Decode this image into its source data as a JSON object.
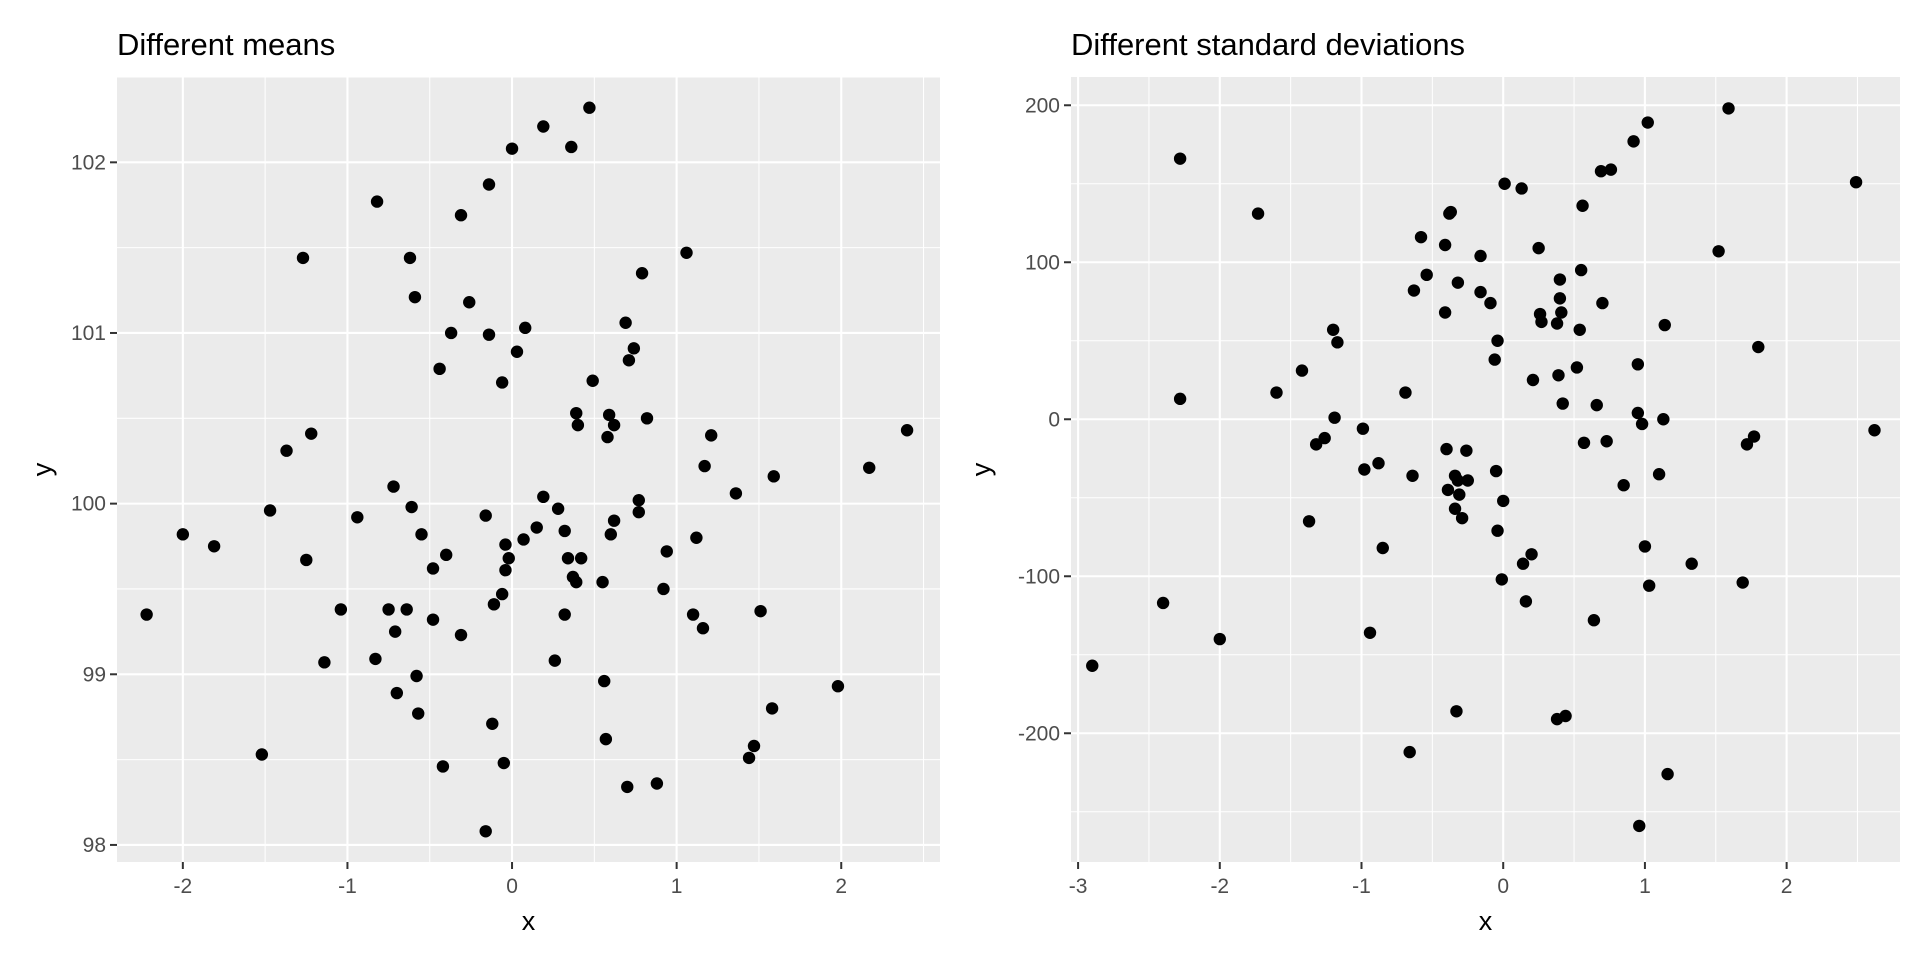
{
  "chart_data": [
    {
      "type": "scatter",
      "title": "Different means",
      "xlabel": "x",
      "ylabel": "y",
      "xlim": [
        -2.4,
        2.6
      ],
      "ylim": [
        97.9,
        102.5
      ],
      "x_ticks": [
        -2,
        -1,
        0,
        1,
        2
      ],
      "y_ticks": [
        98,
        99,
        100,
        101,
        102
      ],
      "x_tick_labels": [
        "-2",
        "-1",
        "0",
        "1",
        "2"
      ],
      "y_tick_labels": [
        "98",
        "99",
        "100",
        "101",
        "102"
      ],
      "grid": true,
      "points": [
        [
          -2.22,
          99.35
        ],
        [
          -2.0,
          99.82
        ],
        [
          -1.81,
          99.75
        ],
        [
          -1.52,
          98.53
        ],
        [
          -1.47,
          99.96
        ],
        [
          -1.37,
          100.31
        ],
        [
          -1.27,
          101.44
        ],
        [
          -1.25,
          99.67
        ],
        [
          -1.22,
          100.41
        ],
        [
          -1.14,
          99.07
        ],
        [
          -1.04,
          99.38
        ],
        [
          -0.94,
          99.92
        ],
        [
          -0.83,
          99.09
        ],
        [
          -0.82,
          101.77
        ],
        [
          -0.75,
          99.38
        ],
        [
          -0.72,
          100.1
        ],
        [
          -0.71,
          99.25
        ],
        [
          -0.7,
          98.89
        ],
        [
          -0.64,
          99.38
        ],
        [
          -0.62,
          101.44
        ],
        [
          -0.61,
          99.98
        ],
        [
          -0.59,
          101.21
        ],
        [
          -0.58,
          98.99
        ],
        [
          -0.57,
          98.77
        ],
        [
          -0.55,
          99.82
        ],
        [
          -0.48,
          99.62
        ],
        [
          -0.48,
          99.32
        ],
        [
          -0.44,
          100.79
        ],
        [
          -0.42,
          98.46
        ],
        [
          -0.4,
          99.7
        ],
        [
          -0.37,
          101.0
        ],
        [
          -0.31,
          101.69
        ],
        [
          -0.31,
          99.23
        ],
        [
          -0.26,
          101.18
        ],
        [
          -0.16,
          99.93
        ],
        [
          -0.16,
          98.08
        ],
        [
          -0.14,
          101.87
        ],
        [
          -0.14,
          100.99
        ],
        [
          -0.12,
          98.71
        ],
        [
          -0.11,
          99.41
        ],
        [
          -0.06,
          100.71
        ],
        [
          -0.06,
          99.47
        ],
        [
          -0.05,
          98.48
        ],
        [
          -0.04,
          99.61
        ],
        [
          -0.04,
          99.76
        ],
        [
          -0.02,
          99.68
        ],
        [
          0.0,
          102.08
        ],
        [
          0.03,
          100.89
        ],
        [
          0.07,
          99.79
        ],
        [
          0.08,
          101.03
        ],
        [
          0.15,
          99.86
        ],
        [
          0.19,
          102.21
        ],
        [
          0.19,
          100.04
        ],
        [
          0.26,
          99.08
        ],
        [
          0.28,
          99.97
        ],
        [
          0.32,
          99.35
        ],
        [
          0.32,
          99.84
        ],
        [
          0.34,
          99.68
        ],
        [
          0.36,
          102.09
        ],
        [
          0.37,
          99.57
        ],
        [
          0.39,
          99.54
        ],
        [
          0.39,
          100.53
        ],
        [
          0.4,
          100.46
        ],
        [
          0.42,
          99.68
        ],
        [
          0.47,
          102.32
        ],
        [
          0.49,
          100.72
        ],
        [
          0.55,
          99.54
        ],
        [
          0.56,
          98.96
        ],
        [
          0.57,
          98.62
        ],
        [
          0.58,
          100.39
        ],
        [
          0.59,
          100.52
        ],
        [
          0.6,
          99.82
        ],
        [
          0.62,
          100.46
        ],
        [
          0.62,
          99.9
        ],
        [
          0.69,
          101.06
        ],
        [
          0.7,
          98.34
        ],
        [
          0.71,
          100.84
        ],
        [
          0.74,
          100.91
        ],
        [
          0.77,
          99.95
        ],
        [
          0.77,
          100.02
        ],
        [
          0.79,
          101.35
        ],
        [
          0.82,
          100.5
        ],
        [
          0.88,
          98.36
        ],
        [
          0.92,
          99.5
        ],
        [
          0.94,
          99.72
        ],
        [
          1.06,
          101.47
        ],
        [
          1.1,
          99.35
        ],
        [
          1.12,
          99.8
        ],
        [
          1.16,
          99.27
        ],
        [
          1.17,
          100.22
        ],
        [
          1.21,
          100.4
        ],
        [
          1.36,
          100.06
        ],
        [
          1.44,
          98.51
        ],
        [
          1.47,
          98.58
        ],
        [
          1.51,
          99.37
        ],
        [
          1.58,
          98.8
        ],
        [
          1.59,
          100.16
        ],
        [
          1.98,
          98.93
        ],
        [
          2.17,
          100.21
        ],
        [
          2.4,
          100.43
        ]
      ]
    },
    {
      "type": "scatter",
      "title": "Different standard deviations",
      "xlabel": "x",
      "ylabel": "y",
      "xlim": [
        -3.05,
        2.8
      ],
      "ylim": [
        -282,
        218
      ],
      "x_ticks": [
        -3,
        -2,
        -1,
        0,
        1,
        2
      ],
      "y_ticks": [
        -200,
        -100,
        0,
        100,
        200
      ],
      "x_tick_labels": [
        "-3",
        "-2",
        "-1",
        "0",
        "1",
        "2"
      ],
      "y_tick_labels": [
        "-200",
        "-100",
        "0",
        "100",
        "200"
      ],
      "grid": true,
      "points": [
        [
          -2.9,
          -157
        ],
        [
          -2.4,
          -117
        ],
        [
          -2.28,
          166
        ],
        [
          -2.28,
          13
        ],
        [
          -2.0,
          -140
        ],
        [
          -1.73,
          131
        ],
        [
          -1.6,
          17
        ],
        [
          -1.42,
          31
        ],
        [
          -1.37,
          -65
        ],
        [
          -1.32,
          -16
        ],
        [
          -1.26,
          -12
        ],
        [
          -1.2,
          57
        ],
        [
          -1.19,
          1
        ],
        [
          -1.17,
          49
        ],
        [
          -0.99,
          -6
        ],
        [
          -0.98,
          -32
        ],
        [
          -0.94,
          -136
        ],
        [
          -0.88,
          -28
        ],
        [
          -0.85,
          -82
        ],
        [
          -0.69,
          17
        ],
        [
          -0.66,
          -212
        ],
        [
          -0.64,
          -36
        ],
        [
          -0.63,
          82
        ],
        [
          -0.58,
          116
        ],
        [
          -0.54,
          92
        ],
        [
          -0.41,
          68
        ],
        [
          -0.41,
          111
        ],
        [
          -0.4,
          -19
        ],
        [
          -0.39,
          -45
        ],
        [
          -0.38,
          131
        ],
        [
          -0.37,
          132
        ],
        [
          -0.34,
          -36
        ],
        [
          -0.34,
          -57
        ],
        [
          -0.33,
          -186
        ],
        [
          -0.32,
          -39
        ],
        [
          -0.32,
          87
        ],
        [
          -0.31,
          -48
        ],
        [
          -0.29,
          -63
        ],
        [
          -0.26,
          -20
        ],
        [
          -0.25,
          -39
        ],
        [
          -0.16,
          81
        ],
        [
          -0.16,
          104
        ],
        [
          -0.09,
          74
        ],
        [
          -0.06,
          38
        ],
        [
          -0.05,
          -33
        ],
        [
          -0.04,
          50
        ],
        [
          -0.04,
          -71
        ],
        [
          -0.01,
          -102
        ],
        [
          0.0,
          -52
        ],
        [
          0.01,
          150
        ],
        [
          0.13,
          147
        ],
        [
          0.14,
          -92
        ],
        [
          0.16,
          -116
        ],
        [
          0.2,
          -86
        ],
        [
          0.21,
          25
        ],
        [
          0.25,
          109
        ],
        [
          0.26,
          67
        ],
        [
          0.27,
          62
        ],
        [
          0.38,
          -191
        ],
        [
          0.38,
          61
        ],
        [
          0.39,
          28
        ],
        [
          0.4,
          77
        ],
        [
          0.4,
          89
        ],
        [
          0.41,
          68
        ],
        [
          0.42,
          10
        ],
        [
          0.44,
          -189
        ],
        [
          0.52,
          33
        ],
        [
          0.54,
          57
        ],
        [
          0.55,
          95
        ],
        [
          0.56,
          136
        ],
        [
          0.57,
          -15
        ],
        [
          0.64,
          -128
        ],
        [
          0.66,
          9
        ],
        [
          0.69,
          158
        ],
        [
          0.7,
          74
        ],
        [
          0.73,
          -14
        ],
        [
          0.76,
          159
        ],
        [
          0.85,
          -42
        ],
        [
          0.92,
          177
        ],
        [
          0.95,
          35
        ],
        [
          0.95,
          4
        ],
        [
          0.96,
          -259
        ],
        [
          0.98,
          -3
        ],
        [
          1.0,
          -81
        ],
        [
          1.02,
          189
        ],
        [
          1.03,
          -106
        ],
        [
          1.1,
          -35
        ],
        [
          1.13,
          0
        ],
        [
          1.14,
          60
        ],
        [
          1.16,
          -226
        ],
        [
          1.33,
          -92
        ],
        [
          1.52,
          107
        ],
        [
          1.59,
          198
        ],
        [
          1.69,
          -104
        ],
        [
          1.72,
          -16
        ],
        [
          1.77,
          -11
        ],
        [
          1.8,
          46
        ],
        [
          2.49,
          151
        ],
        [
          2.62,
          -7
        ]
      ]
    }
  ]
}
